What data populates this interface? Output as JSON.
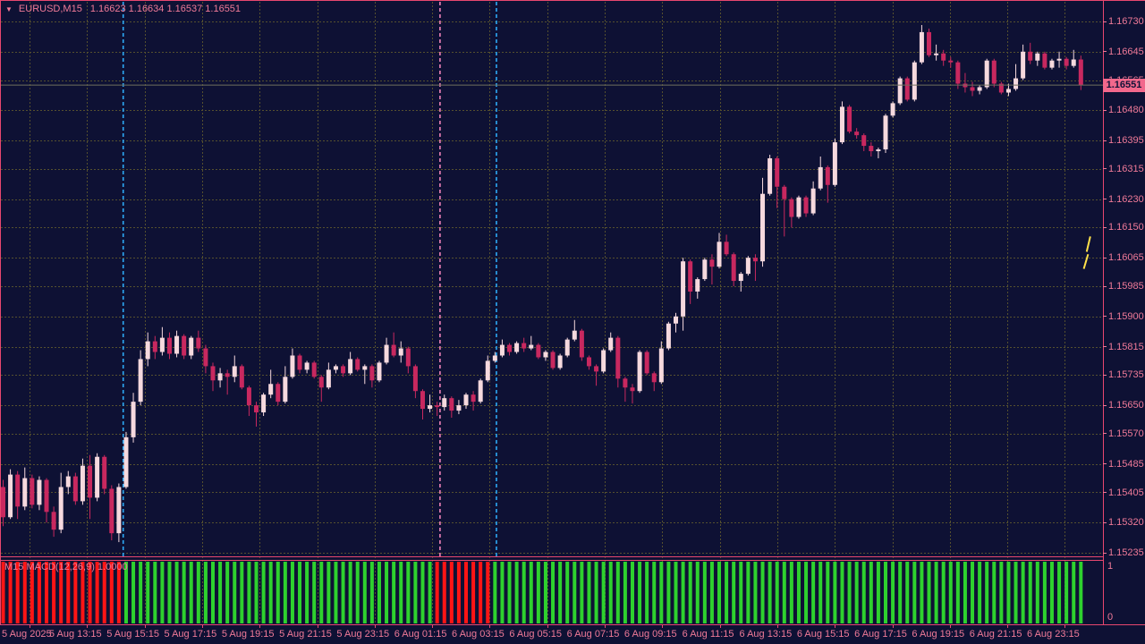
{
  "window": {
    "dropdown_icon": "▼",
    "symbol": "EURUSD,M15",
    "ohlc": "1.16623 1.16634 1.16537 1.16551"
  },
  "colors": {
    "background": "#0e1134",
    "frame": "#e8476f",
    "axis_text": "#f07a98",
    "grid": "#55502e",
    "bull": "#f6d9de",
    "bear": "#c8285f",
    "current_price_line": "#6f6f5d",
    "badge_bg": "#f2688c",
    "badge_text": "#101238",
    "macd_up": "#2ed12e",
    "macd_down": "#ff1515",
    "buy_signal": "#2da9f5",
    "sell_signal": "#ef82b9",
    "marker": "#ffe14a"
  },
  "price_axis": {
    "current": "1.16551"
  },
  "indicator": {
    "label": "M15 MACD(12,26,9) 1.0000",
    "scale_top": "1",
    "scale_bottom": "0"
  },
  "chart_data": {
    "type": "candlestick",
    "title": "EURUSD,M15",
    "symbol": "EURUSD",
    "timeframe": "M15",
    "ylim": [
      1.15235,
      1.1673
    ],
    "y_ticks": [
      "1.16730",
      "1.16645",
      "1.16565",
      "1.16480",
      "1.16395",
      "1.16315",
      "1.16230",
      "1.16150",
      "1.16065",
      "1.15985",
      "1.15900",
      "1.15815",
      "1.15735",
      "1.15650",
      "1.15570",
      "1.15485",
      "1.15405",
      "1.15320",
      "1.15235"
    ],
    "x_ticks": [
      "5 Aug 2025",
      "5 Aug 13:15",
      "5 Aug 15:15",
      "5 Aug 17:15",
      "5 Aug 19:15",
      "5 Aug 21:15",
      "5 Aug 23:15",
      "6 Aug 01:15",
      "6 Aug 03:15",
      "6 Aug 05:15",
      "6 Aug 07:15",
      "6 Aug 09:15",
      "6 Aug 11:15",
      "6 Aug 13:15",
      "6 Aug 15:15",
      "6 Aug 17:15",
      "6 Aug 19:15",
      "6 Aug 21:15",
      "6 Aug 23:15"
    ],
    "current_price": 1.16551,
    "last_candle_ohlc": [
      1.16623,
      1.16634,
      1.16537,
      1.16551
    ],
    "candles": [
      [
        1.1542,
        1.1544,
        1.1531,
        1.15335
      ],
      [
        1.15335,
        1.1547,
        1.1533,
        1.15455
      ],
      [
        1.15455,
        1.15465,
        1.1533,
        1.15365
      ],
      [
        1.15365,
        1.15475,
        1.15355,
        1.15445
      ],
      [
        1.15445,
        1.15455,
        1.1536,
        1.1537
      ],
      [
        1.1537,
        1.1545,
        1.15355,
        1.1544
      ],
      [
        1.1544,
        1.15445,
        1.1532,
        1.1535
      ],
      [
        1.1535,
        1.15365,
        1.1528,
        1.153
      ],
      [
        1.153,
        1.1546,
        1.1529,
        1.1542
      ],
      [
        1.1542,
        1.15465,
        1.154,
        1.1545
      ],
      [
        1.1545,
        1.1546,
        1.1537,
        1.1538
      ],
      [
        1.1538,
        1.155,
        1.1537,
        1.1548
      ],
      [
        1.1548,
        1.1551,
        1.1533,
        1.1539
      ],
      [
        1.1539,
        1.15515,
        1.1538,
        1.15505
      ],
      [
        1.15505,
        1.1551,
        1.154,
        1.15415
      ],
      [
        1.15415,
        1.15425,
        1.1527,
        1.1529
      ],
      [
        1.1529,
        1.1543,
        1.15265,
        1.1542
      ],
      [
        1.1542,
        1.15575,
        1.15415,
        1.1556
      ],
      [
        1.1556,
        1.15685,
        1.15545,
        1.1566
      ],
      [
        1.1566,
        1.15805,
        1.1565,
        1.1578
      ],
      [
        1.1578,
        1.15855,
        1.1576,
        1.1583
      ],
      [
        1.1583,
        1.15845,
        1.1578,
        1.158
      ],
      [
        1.158,
        1.1587,
        1.1579,
        1.1584
      ],
      [
        1.1584,
        1.15855,
        1.1578,
        1.15795
      ],
      [
        1.15795,
        1.1586,
        1.15785,
        1.15845
      ],
      [
        1.15845,
        1.1585,
        1.1578,
        1.1579
      ],
      [
        1.1579,
        1.15845,
        1.1578,
        1.1584
      ],
      [
        1.1584,
        1.1586,
        1.158,
        1.1581
      ],
      [
        1.1581,
        1.1582,
        1.1574,
        1.1576
      ],
      [
        1.1576,
        1.1577,
        1.1569,
        1.1572
      ],
      [
        1.1572,
        1.15755,
        1.157,
        1.1574
      ],
      [
        1.1574,
        1.1575,
        1.1568,
        1.1573
      ],
      [
        1.1573,
        1.1579,
        1.15715,
        1.1576
      ],
      [
        1.1576,
        1.15765,
        1.15695,
        1.157
      ],
      [
        1.157,
        1.15705,
        1.1562,
        1.1565
      ],
      [
        1.1565,
        1.1566,
        1.1559,
        1.1563
      ],
      [
        1.1563,
        1.15685,
        1.1562,
        1.1568
      ],
      [
        1.1568,
        1.1575,
        1.1567,
        1.1571
      ],
      [
        1.1571,
        1.15715,
        1.1565,
        1.1566
      ],
      [
        1.1566,
        1.1576,
        1.15655,
        1.1573
      ],
      [
        1.1573,
        1.1581,
        1.15725,
        1.1579
      ],
      [
        1.1579,
        1.15795,
        1.1574,
        1.1575
      ],
      [
        1.1575,
        1.15775,
        1.1574,
        1.1577
      ],
      [
        1.1577,
        1.15775,
        1.15725,
        1.1573
      ],
      [
        1.1573,
        1.15735,
        1.1566,
        1.157
      ],
      [
        1.157,
        1.1577,
        1.15695,
        1.1575
      ],
      [
        1.1575,
        1.15765,
        1.1574,
        1.1576
      ],
      [
        1.1576,
        1.15765,
        1.1573,
        1.1574
      ],
      [
        1.1574,
        1.158,
        1.15735,
        1.1578
      ],
      [
        1.1578,
        1.15785,
        1.15745,
        1.1575
      ],
      [
        1.1575,
        1.15765,
        1.1571,
        1.1576
      ],
      [
        1.1576,
        1.15765,
        1.157,
        1.1572
      ],
      [
        1.1572,
        1.15775,
        1.15715,
        1.1577
      ],
      [
        1.1577,
        1.1584,
        1.15765,
        1.1582
      ],
      [
        1.1582,
        1.15855,
        1.15785,
        1.1579
      ],
      [
        1.1579,
        1.1583,
        1.1577,
        1.1581
      ],
      [
        1.1581,
        1.15815,
        1.1574,
        1.1576
      ],
      [
        1.1576,
        1.15765,
        1.1567,
        1.1569
      ],
      [
        1.1569,
        1.15695,
        1.1561,
        1.1564
      ],
      [
        1.1564,
        1.1568,
        1.1563,
        1.1565
      ],
      [
        1.1565,
        1.1566,
        1.1562,
        1.15645
      ],
      [
        1.15645,
        1.1568,
        1.15635,
        1.1567
      ],
      [
        1.1567,
        1.15675,
        1.15615,
        1.15635
      ],
      [
        1.15635,
        1.15665,
        1.15625,
        1.1565
      ],
      [
        1.1565,
        1.15685,
        1.1564,
        1.1568
      ],
      [
        1.1568,
        1.1569,
        1.15635,
        1.1566
      ],
      [
        1.1566,
        1.15725,
        1.15655,
        1.1572
      ],
      [
        1.1572,
        1.1579,
        1.15715,
        1.15775
      ],
      [
        1.15775,
        1.158,
        1.1577,
        1.1579
      ],
      [
        1.1579,
        1.15835,
        1.15785,
        1.1582
      ],
      [
        1.1582,
        1.15825,
        1.1579,
        1.158
      ],
      [
        1.158,
        1.1583,
        1.15795,
        1.15825
      ],
      [
        1.15825,
        1.1584,
        1.158,
        1.1581
      ],
      [
        1.1581,
        1.15845,
        1.15805,
        1.1582
      ],
      [
        1.1582,
        1.15825,
        1.1578,
        1.15785
      ],
      [
        1.15785,
        1.15805,
        1.15775,
        1.158
      ],
      [
        1.158,
        1.15805,
        1.1575,
        1.15755
      ],
      [
        1.15755,
        1.15795,
        1.1575,
        1.1579
      ],
      [
        1.1579,
        1.1584,
        1.15785,
        1.15835
      ],
      [
        1.15835,
        1.1589,
        1.1583,
        1.1586
      ],
      [
        1.1586,
        1.15865,
        1.15775,
        1.15785
      ],
      [
        1.15785,
        1.1579,
        1.1575,
        1.1576
      ],
      [
        1.1576,
        1.15765,
        1.15705,
        1.15745
      ],
      [
        1.15745,
        1.1581,
        1.1574,
        1.15805
      ],
      [
        1.15805,
        1.15855,
        1.158,
        1.1584
      ],
      [
        1.1584,
        1.15845,
        1.157,
        1.15725
      ],
      [
        1.15725,
        1.1573,
        1.1566,
        1.157
      ],
      [
        1.157,
        1.1571,
        1.15655,
        1.1569
      ],
      [
        1.1569,
        1.15805,
        1.15685,
        1.158
      ],
      [
        1.158,
        1.15805,
        1.15735,
        1.1574
      ],
      [
        1.1574,
        1.15745,
        1.1569,
        1.15715
      ],
      [
        1.15715,
        1.1583,
        1.1571,
        1.1581
      ],
      [
        1.1581,
        1.15885,
        1.15805,
        1.1588
      ],
      [
        1.1588,
        1.1591,
        1.15855,
        1.159
      ],
      [
        1.159,
        1.16065,
        1.1586,
        1.16055
      ],
      [
        1.16055,
        1.1606,
        1.15935,
        1.1597
      ],
      [
        1.1597,
        1.1601,
        1.1595,
        1.16005
      ],
      [
        1.16005,
        1.16065,
        1.16,
        1.1606
      ],
      [
        1.1606,
        1.16075,
        1.1599,
        1.1604
      ],
      [
        1.1604,
        1.16135,
        1.16035,
        1.1611
      ],
      [
        1.1611,
        1.1613,
        1.1607,
        1.16075
      ],
      [
        1.16075,
        1.1608,
        1.15985,
        1.16
      ],
      [
        1.16,
        1.16025,
        1.1597,
        1.1602
      ],
      [
        1.1602,
        1.1607,
        1.16015,
        1.16065
      ],
      [
        1.16065,
        1.16075,
        1.16,
        1.16055
      ],
      [
        1.16055,
        1.1629,
        1.1604,
        1.16245
      ],
      [
        1.16245,
        1.16355,
        1.1624,
        1.16345
      ],
      [
        1.16345,
        1.1635,
        1.16205,
        1.16265
      ],
      [
        1.16265,
        1.1627,
        1.16125,
        1.1623
      ],
      [
        1.1623,
        1.16235,
        1.1615,
        1.1618
      ],
      [
        1.1618,
        1.1624,
        1.16175,
        1.16235
      ],
      [
        1.16235,
        1.1624,
        1.1618,
        1.1619
      ],
      [
        1.1619,
        1.1628,
        1.16185,
        1.1626
      ],
      [
        1.1626,
        1.1635,
        1.16255,
        1.1632
      ],
      [
        1.1632,
        1.16325,
        1.1622,
        1.1627
      ],
      [
        1.1627,
        1.164,
        1.16265,
        1.1639
      ],
      [
        1.1639,
        1.16505,
        1.16385,
        1.1649
      ],
      [
        1.1649,
        1.16495,
        1.16415,
        1.1642
      ],
      [
        1.1642,
        1.1643,
        1.164,
        1.1641
      ],
      [
        1.1641,
        1.16415,
        1.16365,
        1.1638
      ],
      [
        1.1638,
        1.1639,
        1.1635,
        1.16365
      ],
      [
        1.16365,
        1.16375,
        1.16345,
        1.1637
      ],
      [
        1.1637,
        1.1647,
        1.1636,
        1.16465
      ],
      [
        1.16465,
        1.16505,
        1.1646,
        1.165
      ],
      [
        1.165,
        1.16575,
        1.16495,
        1.1657
      ],
      [
        1.1657,
        1.16575,
        1.16505,
        1.1651
      ],
      [
        1.1651,
        1.1662,
        1.16505,
        1.16615
      ],
      [
        1.16615,
        1.1672,
        1.1661,
        1.167
      ],
      [
        1.167,
        1.1671,
        1.1663,
        1.16635
      ],
      [
        1.16635,
        1.16665,
        1.1662,
        1.1664
      ],
      [
        1.1664,
        1.1665,
        1.16605,
        1.1662
      ],
      [
        1.1662,
        1.1663,
        1.166,
        1.16615
      ],
      [
        1.16615,
        1.1662,
        1.1654,
        1.16555
      ],
      [
        1.16555,
        1.16585,
        1.1653,
        1.16545
      ],
      [
        1.16545,
        1.1656,
        1.1652,
        1.16535
      ],
      [
        1.16535,
        1.1655,
        1.16525,
        1.16545
      ],
      [
        1.16545,
        1.16625,
        1.1654,
        1.1662
      ],
      [
        1.1662,
        1.16625,
        1.16545,
        1.16555
      ],
      [
        1.16555,
        1.1656,
        1.16525,
        1.1653
      ],
      [
        1.1653,
        1.16555,
        1.1652,
        1.1654
      ],
      [
        1.1654,
        1.1661,
        1.16535,
        1.1657
      ],
      [
        1.1657,
        1.16665,
        1.16565,
        1.16645
      ],
      [
        1.16645,
        1.1667,
        1.1661,
        1.1662
      ],
      [
        1.1662,
        1.16645,
        1.16605,
        1.1664
      ],
      [
        1.1664,
        1.16645,
        1.16595,
        1.166
      ],
      [
        1.166,
        1.16625,
        1.16595,
        1.1662
      ],
      [
        1.1662,
        1.16645,
        1.166,
        1.16625
      ],
      [
        1.16625,
        1.1663,
        1.16595,
        1.16605
      ],
      [
        1.16605,
        1.1665,
        1.166,
        1.16623
      ],
      [
        1.16623,
        1.16634,
        1.16537,
        1.16551
      ]
    ],
    "signals": [
      {
        "index": 16.6,
        "type": "buy"
      },
      {
        "index": 60.4,
        "type": "sell"
      },
      {
        "index": 68.2,
        "type": "buy"
      }
    ],
    "marker_segments": [
      [
        [
          150.3,
          1.16125
        ],
        [
          149.8,
          1.16082
        ]
      ],
      [
        [
          150.0,
          1.16075
        ],
        [
          149.4,
          1.16034
        ]
      ]
    ],
    "indicator_panel": {
      "type": "histogram",
      "label": "M15 MACD(12,26,9) 1.0000",
      "range": [
        0,
        1
      ],
      "bar_value": 1,
      "bar_states": [
        {
          "from": 0,
          "to": 16,
          "state": "down"
        },
        {
          "from": 17,
          "to": 59,
          "state": "up"
        },
        {
          "from": 60,
          "to": 67,
          "state": "down"
        },
        {
          "from": 68,
          "to": 149,
          "state": "up"
        }
      ]
    }
  }
}
